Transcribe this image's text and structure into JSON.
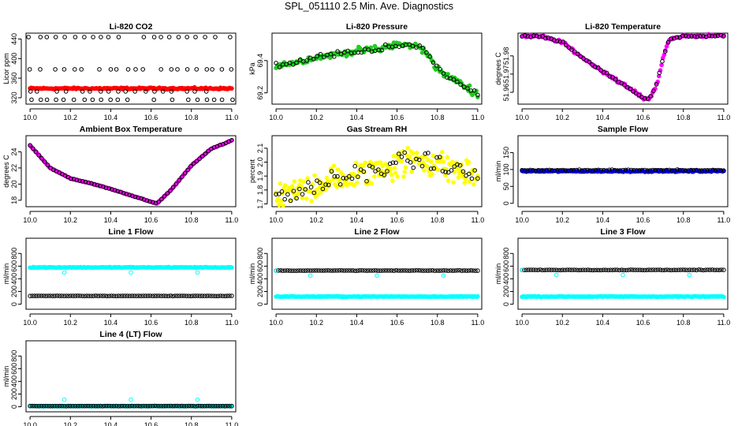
{
  "figure": {
    "title": "SPL_051110  2.5 Min. Ave. Diagnostics"
  },
  "colors": {
    "black": "#000000",
    "red": "#ff0000",
    "green": "#22cc22",
    "magenta": "#ff00ff",
    "yellow": "#ffff00",
    "blue": "#0000ff",
    "cyan": "#00ffff"
  },
  "chart_data": [
    {
      "id": "li820-co2",
      "type": "scatter",
      "title": "Li-820 CO2",
      "ylabel": "Licor ppm",
      "xlim": [
        9.98,
        11.02
      ],
      "ylim": [
        307,
        452
      ],
      "xticks": [
        10.0,
        10.2,
        10.4,
        10.6,
        10.8,
        11.0
      ],
      "xtick_labels": [
        "10.0",
        "10.2",
        "10.4",
        "10.6",
        "10.8",
        "11.0"
      ],
      "yticks": [
        320,
        360,
        400,
        440
      ],
      "ytick_labels": [
        "320",
        "360",
        "400",
        "440"
      ],
      "series": [
        {
          "name": "line-1",
          "color": "red",
          "marker": "filled",
          "values": "flat",
          "params": [
            10.0,
            11.0,
            339,
            2.5,
            180
          ]
        },
        {
          "name": "line-2",
          "color": "black",
          "marker": "open",
          "values": "levels",
          "params": [
            10.0,
            11.0,
            24,
            1
          ]
        }
      ],
      "levels": [
        444,
        378,
        333,
        316
      ]
    },
    {
      "id": "li820-pressure",
      "type": "scatter",
      "title": "Li-820 Pressure",
      "ylabel": "kPa",
      "xlim": [
        9.98,
        11.02
      ],
      "ylim": [
        69.13,
        69.57
      ],
      "xticks": [
        10.0,
        10.2,
        10.4,
        10.6,
        10.8,
        11.0
      ],
      "xtick_labels": [
        "10.0",
        "10.2",
        "10.4",
        "10.6",
        "10.8",
        "11.0"
      ],
      "yticks": [
        69.2,
        69.4
      ],
      "ytick_labels": [
        "69.2",
        "69.4"
      ],
      "series": [
        {
          "name": "line-1",
          "color": "green",
          "marker": "filled",
          "values": "curve",
          "params": [
            10.0,
            11.0,
            0.03,
            150
          ]
        },
        {
          "name": "line-2",
          "color": "black",
          "marker": "open",
          "values": "curve",
          "params": [
            10.0,
            11.0,
            0.025,
            60
          ]
        }
      ],
      "curve": [
        [
          10.0,
          69.37
        ],
        [
          10.1,
          69.39
        ],
        [
          10.2,
          69.42
        ],
        [
          10.3,
          69.44
        ],
        [
          10.4,
          69.46
        ],
        [
          10.5,
          69.47
        ],
        [
          10.6,
          69.5
        ],
        [
          10.7,
          69.49
        ],
        [
          10.75,
          69.45
        ],
        [
          10.8,
          69.34
        ],
        [
          10.9,
          69.27
        ],
        [
          11.0,
          69.19
        ]
      ]
    },
    {
      "id": "li820-temperature",
      "type": "scatter",
      "title": "Li-820 Temperature",
      "ylabel": "degrees C",
      "xlim": [
        9.98,
        11.02
      ],
      "ylim": [
        51.9535,
        51.9925
      ],
      "xticks": [
        10.0,
        10.2,
        10.4,
        10.6,
        10.8,
        11.0
      ],
      "xtick_labels": [
        "10.0",
        "10.2",
        "10.4",
        "10.6",
        "10.8",
        "11.0"
      ],
      "yticks": [
        51.96,
        51.97,
        51.98
      ],
      "ytick_labels": [
        "51.96",
        "51.97",
        "51.98"
      ],
      "series": [
        {
          "name": "line-1",
          "color": "magenta",
          "marker": "filled",
          "values": "curve",
          "params": [
            10.0,
            11.0,
            0.0012,
            160
          ]
        },
        {
          "name": "line-2",
          "color": "black",
          "marker": "open",
          "values": "curve",
          "params": [
            10.0,
            11.0,
            0.0008,
            70
          ]
        }
      ],
      "curve": [
        [
          10.0,
          51.991
        ],
        [
          10.1,
          51.9905
        ],
        [
          10.2,
          51.9875
        ],
        [
          10.3,
          51.979
        ],
        [
          10.4,
          51.9715
        ],
        [
          10.5,
          51.9645
        ],
        [
          10.6,
          51.957
        ],
        [
          10.63,
          51.956
        ],
        [
          10.67,
          51.965
        ],
        [
          10.7,
          51.979
        ],
        [
          10.73,
          51.989
        ],
        [
          10.8,
          51.991
        ],
        [
          11.0,
          51.991
        ]
      ]
    },
    {
      "id": "ambient-box-temperature",
      "type": "scatter",
      "title": "Ambient Box Temperature",
      "ylabel": "degrees C",
      "xlim": [
        9.98,
        11.02
      ],
      "ylim": [
        17.2,
        26.0
      ],
      "xticks": [
        10.0,
        10.2,
        10.4,
        10.6,
        10.8,
        11.0
      ],
      "xtick_labels": [
        "10.0",
        "10.2",
        "10.4",
        "10.6",
        "10.8",
        "11.0"
      ],
      "yticks": [
        18,
        20,
        22,
        24
      ],
      "ytick_labels": [
        "18",
        "20",
        "22",
        "24"
      ],
      "series": [
        {
          "name": "line-1",
          "color": "magenta",
          "marker": "filled",
          "values": "curve",
          "params": [
            10.0,
            11.0,
            0.06,
            160
          ]
        },
        {
          "name": "line-2",
          "color": "black",
          "marker": "open",
          "values": "curve",
          "params": [
            10.0,
            11.0,
            0.05,
            70
          ]
        }
      ],
      "curve": [
        [
          10.0,
          24.8
        ],
        [
          10.05,
          23.4
        ],
        [
          10.1,
          22.0
        ],
        [
          10.2,
          20.7
        ],
        [
          10.3,
          20.1
        ],
        [
          10.4,
          19.4
        ],
        [
          10.5,
          18.6
        ],
        [
          10.6,
          17.8
        ],
        [
          10.63,
          17.6
        ],
        [
          10.7,
          19.3
        ],
        [
          10.8,
          22.3
        ],
        [
          10.9,
          24.4
        ],
        [
          11.0,
          25.4
        ]
      ]
    },
    {
      "id": "gas-stream-rh",
      "type": "scatter",
      "title": "Gas Stream RH",
      "ylabel": "percent",
      "xlim": [
        9.98,
        11.02
      ],
      "ylim": [
        1.68,
        2.19
      ],
      "xticks": [
        10.0,
        10.2,
        10.4,
        10.6,
        10.8,
        11.0
      ],
      "xtick_labels": [
        "10.0",
        "10.2",
        "10.4",
        "10.6",
        "10.8",
        "11.0"
      ],
      "yticks": [
        1.7,
        1.8,
        1.9,
        2.0,
        2.1
      ],
      "ytick_labels": [
        "1.7",
        "1.8",
        "1.9",
        "2.0",
        "2.1"
      ],
      "series": [
        {
          "name": "line-1",
          "color": "yellow",
          "marker": "filled",
          "values": "curve",
          "params": [
            10.0,
            11.0,
            0.16,
            200
          ]
        },
        {
          "name": "line-2",
          "color": "black",
          "marker": "open",
          "values": "curve",
          "params": [
            10.0,
            11.0,
            0.1,
            70
          ]
        }
      ],
      "curve": [
        [
          10.0,
          1.74
        ],
        [
          10.1,
          1.78
        ],
        [
          10.2,
          1.84
        ],
        [
          10.3,
          1.87
        ],
        [
          10.4,
          1.9
        ],
        [
          10.5,
          1.95
        ],
        [
          10.6,
          1.99
        ],
        [
          10.7,
          2.02
        ],
        [
          10.8,
          1.99
        ],
        [
          10.9,
          1.94
        ],
        [
          11.0,
          1.9
        ]
      ]
    },
    {
      "id": "sample-flow",
      "type": "scatter",
      "title": "Sample Flow",
      "ylabel": "ml/min",
      "xlim": [
        9.98,
        11.02
      ],
      "ylim": [
        -10,
        200
      ],
      "xticks": [
        10.0,
        10.2,
        10.4,
        10.6,
        10.8,
        11.0
      ],
      "xtick_labels": [
        "10.0",
        "10.2",
        "10.4",
        "10.6",
        "10.8",
        "11.0"
      ],
      "yticks": [
        0,
        50,
        100,
        150
      ],
      "ytick_labels": [
        "0",
        "50",
        "100",
        "150"
      ],
      "series": [
        {
          "name": "line-1",
          "color": "blue",
          "marker": "filled",
          "values": "flat",
          "params": [
            10.0,
            11.0,
            95,
            3,
            180
          ]
        },
        {
          "name": "line-2",
          "color": "black",
          "marker": "open",
          "values": "flat",
          "params": [
            10.0,
            11.0,
            98,
            2,
            75
          ]
        }
      ]
    },
    {
      "id": "line-1-flow",
      "type": "scatter",
      "title": "Line 1 Flow",
      "ylabel": "ml/min",
      "xlim": [
        9.98,
        11.02
      ],
      "ylim": [
        -80,
        1040
      ],
      "xticks": [
        10.0,
        10.2,
        10.4,
        10.6,
        10.8,
        11.0
      ],
      "xtick_labels": [
        "10.0",
        "10.2",
        "10.4",
        "10.6",
        "10.8",
        "11.0"
      ],
      "yticks": [
        0,
        200,
        400,
        600,
        800
      ],
      "ytick_labels": [
        "0",
        "200",
        "400",
        "600",
        "800"
      ],
      "series": [
        {
          "name": "line-1",
          "color": "cyan",
          "marker": "filled",
          "values": "flat",
          "params": [
            10.0,
            11.0,
            580,
            10,
            180
          ]
        },
        {
          "name": "line-2",
          "color": "black",
          "marker": "open",
          "values": "flat",
          "params": [
            10.0,
            11.0,
            130,
            4,
            90
          ]
        },
        {
          "name": "line-3",
          "color": "cyan",
          "marker": "open",
          "values": "points",
          "x": [
            10.17,
            10.5,
            10.83
          ],
          "y": [
            500,
            500,
            500
          ]
        }
      ]
    },
    {
      "id": "line-2-flow",
      "type": "scatter",
      "title": "Line 2 Flow",
      "ylabel": "ml/min",
      "xlim": [
        9.98,
        11.02
      ],
      "ylim": [
        -80,
        1040
      ],
      "xticks": [
        10.0,
        10.2,
        10.4,
        10.6,
        10.8,
        11.0
      ],
      "xtick_labels": [
        "10.0",
        "10.2",
        "10.4",
        "10.6",
        "10.8",
        "11.0"
      ],
      "yticks": [
        0,
        200,
        400,
        600,
        800
      ],
      "ytick_labels": [
        "0",
        "200",
        "400",
        "600",
        "800"
      ],
      "series": [
        {
          "name": "line-1",
          "color": "cyan",
          "marker": "filled",
          "values": "flat",
          "params": [
            10.0,
            11.0,
            120,
            8,
            180
          ]
        },
        {
          "name": "line-2",
          "color": "black",
          "marker": "open",
          "values": "flat",
          "params": [
            10.0,
            11.0,
            530,
            5,
            90
          ]
        },
        {
          "name": "line-3",
          "color": "cyan",
          "marker": "open",
          "values": "points",
          "x": [
            10.0,
            10.17,
            10.5,
            10.83
          ],
          "y": [
            530,
            450,
            450,
            450
          ]
        }
      ]
    },
    {
      "id": "line-3-flow",
      "type": "scatter",
      "title": "Line 3 Flow",
      "ylabel": "ml/min",
      "xlim": [
        9.98,
        11.02
      ],
      "ylim": [
        -80,
        1040
      ],
      "xticks": [
        10.0,
        10.2,
        10.4,
        10.6,
        10.8,
        11.0
      ],
      "xtick_labels": [
        "10.0",
        "10.2",
        "10.4",
        "10.6",
        "10.8",
        "11.0"
      ],
      "yticks": [
        0,
        200,
        400,
        600,
        800
      ],
      "ytick_labels": [
        "0",
        "200",
        "400",
        "600",
        "800"
      ],
      "series": [
        {
          "name": "line-1",
          "color": "cyan",
          "marker": "filled",
          "values": "flat",
          "params": [
            10.0,
            11.0,
            120,
            8,
            180
          ]
        },
        {
          "name": "line-2",
          "color": "black",
          "marker": "open",
          "values": "flat",
          "params": [
            10.0,
            11.0,
            540,
            5,
            90
          ]
        },
        {
          "name": "line-3",
          "color": "cyan",
          "marker": "open",
          "values": "points",
          "x": [
            10.0,
            10.17,
            10.5,
            10.83
          ],
          "y": [
            540,
            460,
            460,
            460
          ]
        }
      ]
    },
    {
      "id": "line-4-lt-flow",
      "type": "scatter",
      "title": "Line 4 (LT) Flow",
      "ylabel": "ml/min",
      "xlim": [
        9.98,
        11.02
      ],
      "ylim": [
        -80,
        1040
      ],
      "xticks": [
        10.0,
        10.2,
        10.4,
        10.6,
        10.8,
        11.0
      ],
      "xtick_labels": [
        "10.0",
        "10.2",
        "10.4",
        "10.6",
        "10.8",
        "11.0"
      ],
      "yticks": [
        0,
        200,
        400,
        600,
        800
      ],
      "ytick_labels": [
        "0",
        "200",
        "400",
        "600",
        "800"
      ],
      "series": [
        {
          "name": "line-1",
          "color": "cyan",
          "marker": "filled",
          "values": "flat",
          "params": [
            10.0,
            11.0,
            10,
            3,
            180
          ]
        },
        {
          "name": "line-2",
          "color": "black",
          "marker": "open",
          "values": "flat",
          "params": [
            10.0,
            11.0,
            10,
            3,
            90
          ]
        },
        {
          "name": "line-3",
          "color": "cyan",
          "marker": "open",
          "values": "points",
          "x": [
            10.17,
            10.5,
            10.83
          ],
          "y": [
            110,
            110,
            110
          ]
        }
      ]
    }
  ]
}
